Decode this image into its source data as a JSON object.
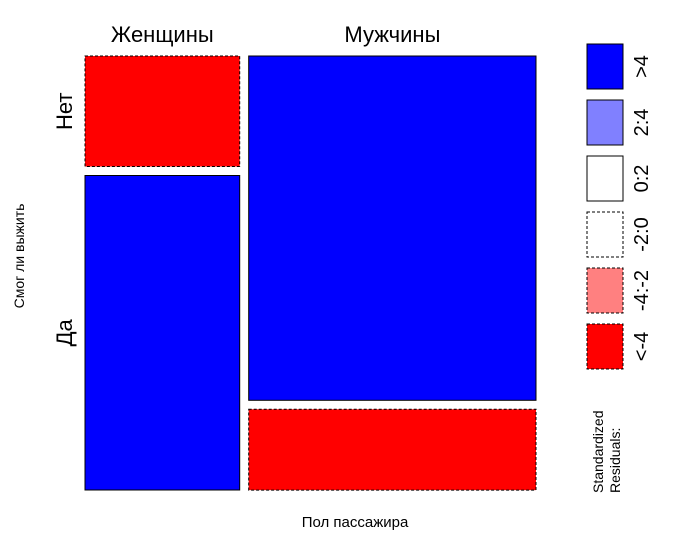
{
  "chart_data": {
    "type": "mosaic",
    "xlabel": "Пол пассажира",
    "ylabel": "Смог ли выжить",
    "columns": [
      "Женщины",
      "Мужчины"
    ],
    "rows": [
      "Нет",
      "Да"
    ],
    "column_shares": [
      0.35,
      0.65
    ],
    "cells": [
      {
        "column": "Женщины",
        "row": "Нет",
        "share_within_column": 0.26,
        "residual_class": "<-4"
      },
      {
        "column": "Женщины",
        "row": "Да",
        "share_within_column": 0.74,
        "residual_class": ">4"
      },
      {
        "column": "Мужчины",
        "row": "Нет",
        "share_within_column": 0.81,
        "residual_class": ">4"
      },
      {
        "column": "Мужчины",
        "row": "Да",
        "share_within_column": 0.19,
        "residual_class": "<-4"
      }
    ],
    "legend": {
      "title": [
        "Standardized",
        "Residuals:"
      ],
      "placement": "right",
      "items": [
        {
          "label": ">4",
          "color": "#0000ff",
          "dashed": false
        },
        {
          "label": "2:4",
          "color": "#8080ff",
          "dashed": false
        },
        {
          "label": "0:2",
          "color": "#ffffff",
          "dashed": false
        },
        {
          "label": "-2:0",
          "color": "#ffffff",
          "dashed": true
        },
        {
          "label": "-4:-2",
          "color": "#ff8080",
          "dashed": true
        },
        {
          "label": "<-4",
          "color": "#ff0000",
          "dashed": true
        }
      ]
    }
  }
}
